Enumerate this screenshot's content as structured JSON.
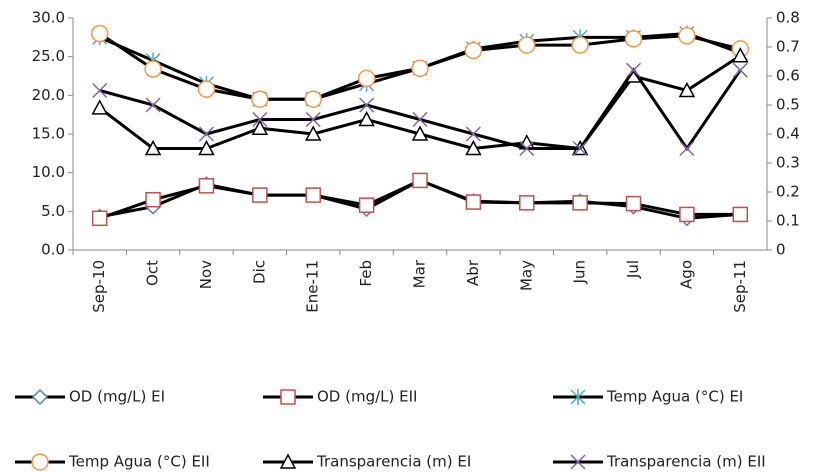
{
  "chart_data": {
    "type": "line",
    "categories": [
      "Sep-10",
      "Oct",
      "Nov",
      "Dic",
      "Ene-11",
      "Feb",
      "Mar",
      "Abr",
      "May",
      "Jun",
      "Jul",
      "Ago",
      "Sep-11"
    ],
    "ylim": [
      0,
      30
    ],
    "yticks": [
      {
        "value": 0,
        "label": "0.0"
      },
      {
        "value": 5,
        "label": "5.0"
      },
      {
        "value": 10,
        "label": "10.0"
      },
      {
        "value": 15,
        "label": "15.0"
      },
      {
        "value": 20,
        "label": "20.0"
      },
      {
        "value": 25,
        "label": "25.0"
      },
      {
        "value": 30,
        "label": "30.0"
      }
    ],
    "y2lim": [
      0,
      0.8
    ],
    "y2ticks": [
      0,
      0.1,
      0.2,
      0.3,
      0.4,
      0.5,
      0.6,
      0.7,
      0.8
    ],
    "legend": "bottom",
    "series": [
      {
        "name": "OD (mg/L) EI",
        "color": "#4f81bd",
        "marker": "diamond",
        "values": [
          4.3,
          5.6,
          8.5,
          7.1,
          7.1,
          5.3,
          9.0,
          6.3,
          6.1,
          6.3,
          5.6,
          4.1,
          4.6
        ]
      },
      {
        "name": "OD (mg/L) EII",
        "color": "#c0504d",
        "marker": "square",
        "values": [
          4.1,
          6.5,
          8.3,
          7.1,
          7.1,
          5.8,
          9.0,
          6.2,
          6.1,
          6.1,
          6.0,
          4.6,
          4.6
        ]
      },
      {
        "name": "Temp Agua (°C) EI",
        "color": "#4bacc6",
        "marker": "asterisk",
        "values": [
          27.5,
          24.5,
          21.5,
          19.5,
          19.5,
          21.5,
          23.5,
          26.0,
          27.0,
          27.5,
          27.5,
          28.0,
          25.5
        ]
      },
      {
        "name": "Temp Agua (°C) EII",
        "color": "#f79646",
        "marker": "circle",
        "values": [
          28.0,
          23.4,
          20.8,
          19.5,
          19.5,
          22.2,
          23.5,
          25.8,
          26.5,
          26.5,
          27.3,
          27.7,
          26.0
        ]
      },
      {
        "name": "Transparencia (m) EI",
        "color": "#000000",
        "marker": "triangle",
        "axis": "y2",
        "values": [
          0.49,
          0.35,
          0.35,
          0.42,
          0.4,
          0.45,
          0.4,
          0.35,
          0.37,
          0.35,
          0.6,
          0.55,
          0.67
        ]
      },
      {
        "name": "Transparencia (m) EII",
        "color": "#8064a2",
        "marker": "x",
        "axis": "y2",
        "values": [
          0.55,
          0.5,
          0.4,
          0.45,
          0.45,
          0.5,
          0.45,
          0.4,
          0.35,
          0.35,
          0.62,
          0.35,
          0.62
        ]
      }
    ]
  }
}
